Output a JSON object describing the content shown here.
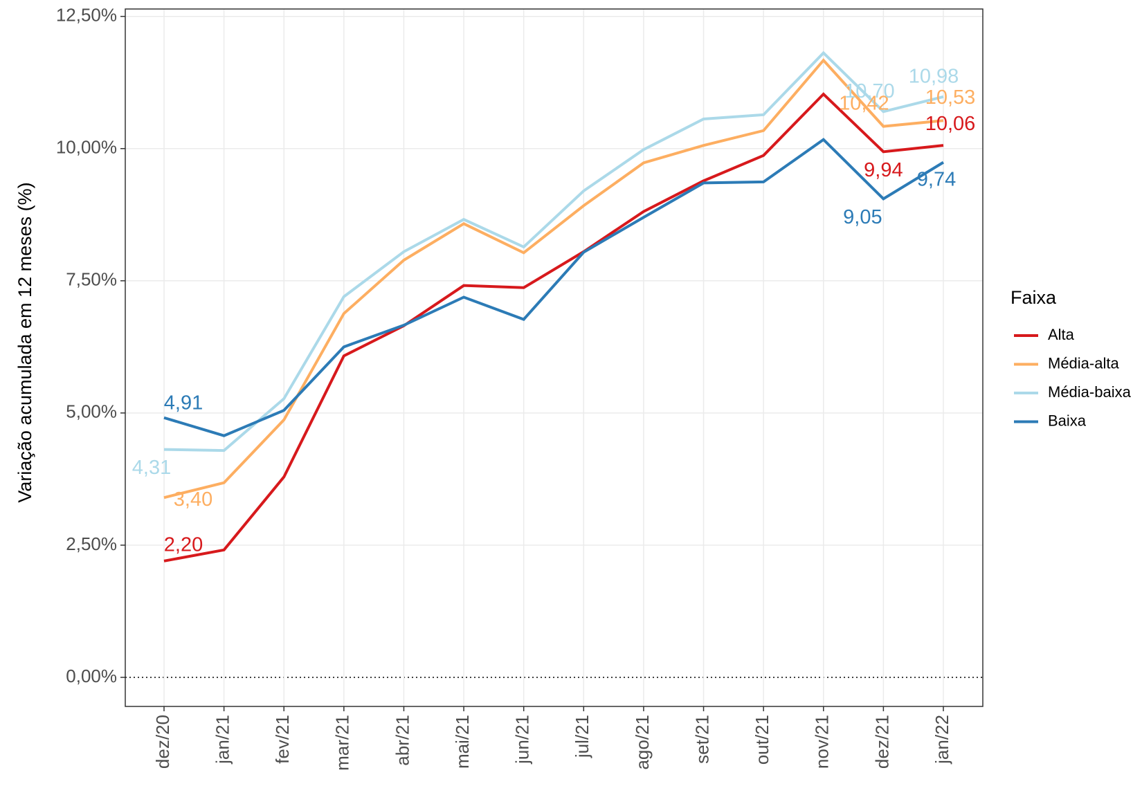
{
  "chart_data": {
    "type": "line",
    "y_label": "Variação acumulada em 12 meses (%)",
    "legend_title": "Faixa",
    "legend_position": "right",
    "grid": true,
    "categories": [
      "dez/20",
      "jan/21",
      "fev/21",
      "mar/21",
      "abr/21",
      "mai/21",
      "jun/21",
      "jul/21",
      "ago/21",
      "set/21",
      "out/21",
      "nov/21",
      "dez/21",
      "jan/22"
    ],
    "ylim": [
      -0.55,
      12.64
    ],
    "yticks": [
      {
        "value": 0,
        "label": "0,00%"
      },
      {
        "value": 2.5,
        "label": "2,50%"
      },
      {
        "value": 5,
        "label": "5,00%"
      },
      {
        "value": 7.5,
        "label": "7,50%"
      },
      {
        "value": 10,
        "label": "10,00%"
      },
      {
        "value": 12.5,
        "label": "12,50%"
      }
    ],
    "series": [
      {
        "name": "Alta",
        "color": "#d7191c",
        "values": [
          2.2,
          2.41,
          3.79,
          6.08,
          6.65,
          7.41,
          7.37,
          8.05,
          8.81,
          9.39,
          9.87,
          11.03,
          9.94,
          10.06
        ],
        "value_labels": [
          "2,20",
          null,
          null,
          null,
          null,
          null,
          null,
          null,
          null,
          null,
          null,
          null,
          "9,94",
          "10,06"
        ]
      },
      {
        "name": "Média-alta",
        "color": "#fdae61",
        "values": [
          3.4,
          3.68,
          4.87,
          6.88,
          7.89,
          8.58,
          8.03,
          8.92,
          9.73,
          10.06,
          10.34,
          11.67,
          10.42,
          10.53
        ],
        "value_labels": [
          "3,40",
          null,
          null,
          null,
          null,
          null,
          null,
          null,
          null,
          null,
          null,
          null,
          "10,42",
          "10,53"
        ]
      },
      {
        "name": "Média-baixa",
        "color": "#abd9e9",
        "values": [
          4.31,
          4.29,
          5.27,
          7.2,
          8.05,
          8.66,
          8.14,
          9.2,
          9.98,
          10.56,
          10.64,
          11.81,
          10.7,
          10.98
        ],
        "value_labels": [
          "4,31",
          null,
          null,
          null,
          null,
          null,
          null,
          null,
          null,
          null,
          null,
          null,
          "10,70",
          "10,98"
        ]
      },
      {
        "name": "Baixa",
        "color": "#2c7bb6",
        "values": [
          4.91,
          4.57,
          5.05,
          6.25,
          6.66,
          7.19,
          6.77,
          8.04,
          8.7,
          9.35,
          9.37,
          10.17,
          9.05,
          9.74
        ],
        "value_labels": [
          "4,91",
          null,
          null,
          null,
          null,
          null,
          null,
          null,
          null,
          null,
          null,
          null,
          "9,05",
          "9,74"
        ]
      }
    ]
  }
}
